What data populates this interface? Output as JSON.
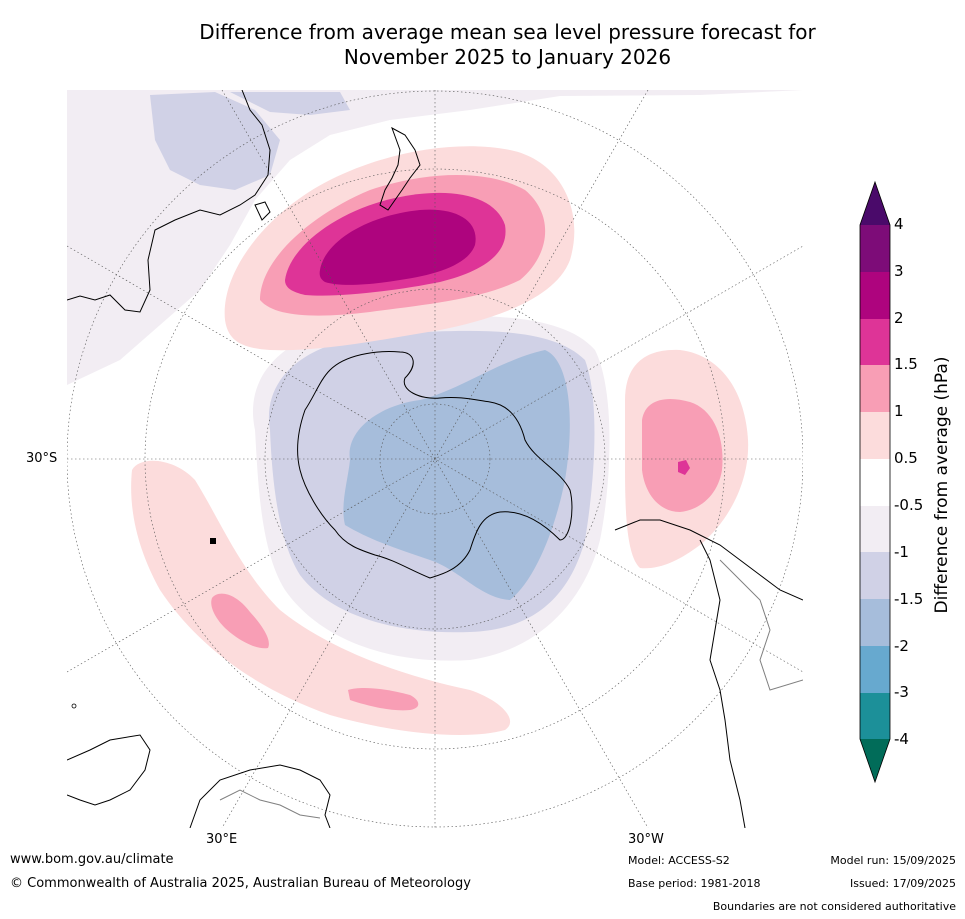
{
  "title": {
    "line1": "Difference from average mean sea level pressure forecast for",
    "line2": "November 2025 to January 2026"
  },
  "map": {
    "projection": "south polar stereographic",
    "lat_label": "30°S",
    "lon_labels": [
      "30°E",
      "30°W"
    ],
    "colors": {
      "land_outline": "#000000",
      "border": "#808080",
      "graticule": "#555555"
    }
  },
  "colorbar": {
    "title": "Difference from average (hPa)",
    "tick_labels": [
      "4",
      "3",
      "2",
      "1.5",
      "1",
      "0.5",
      "-0.5",
      "-1",
      "-1.5",
      "-2",
      "-3",
      "-4"
    ],
    "bins": [
      {
        "range": "> 4",
        "color": "#4a0a6a"
      },
      {
        "range": "3 to 4",
        "color": "#7d0c78"
      },
      {
        "range": "2 to 3",
        "color": "#ae047e"
      },
      {
        "range": "1.5 to 2",
        "color": "#de3497"
      },
      {
        "range": "1 to 1.5",
        "color": "#f89eb5"
      },
      {
        "range": "0.5 to 1",
        "color": "#fcdcdc"
      },
      {
        "range": "-0.5 to 0.5",
        "color": "#ffffff"
      },
      {
        "range": "-1 to -0.5",
        "color": "#f2edf3"
      },
      {
        "range": "-1.5 to -1",
        "color": "#d0d1e6"
      },
      {
        "range": "-2 to -1.5",
        "color": "#a6bddb"
      },
      {
        "range": "-3 to -2",
        "color": "#67a9cf"
      },
      {
        "range": "-4 to -3",
        "color": "#1c9099"
      },
      {
        "range": "< -4",
        "color": "#016c59"
      }
    ]
  },
  "footer": {
    "url": "www.bom.gov.au/climate",
    "copyright": "© Commonwealth of Australia 2025, Australian Bureau of Meteorology",
    "model": "Model: ACCESS-S2",
    "base_period": "Base period: 1981-2018",
    "model_run": "Model run: 15/09/2025",
    "issued": "Issued: 17/09/2025",
    "disclaimer": "Boundaries are not considered authoritative"
  }
}
